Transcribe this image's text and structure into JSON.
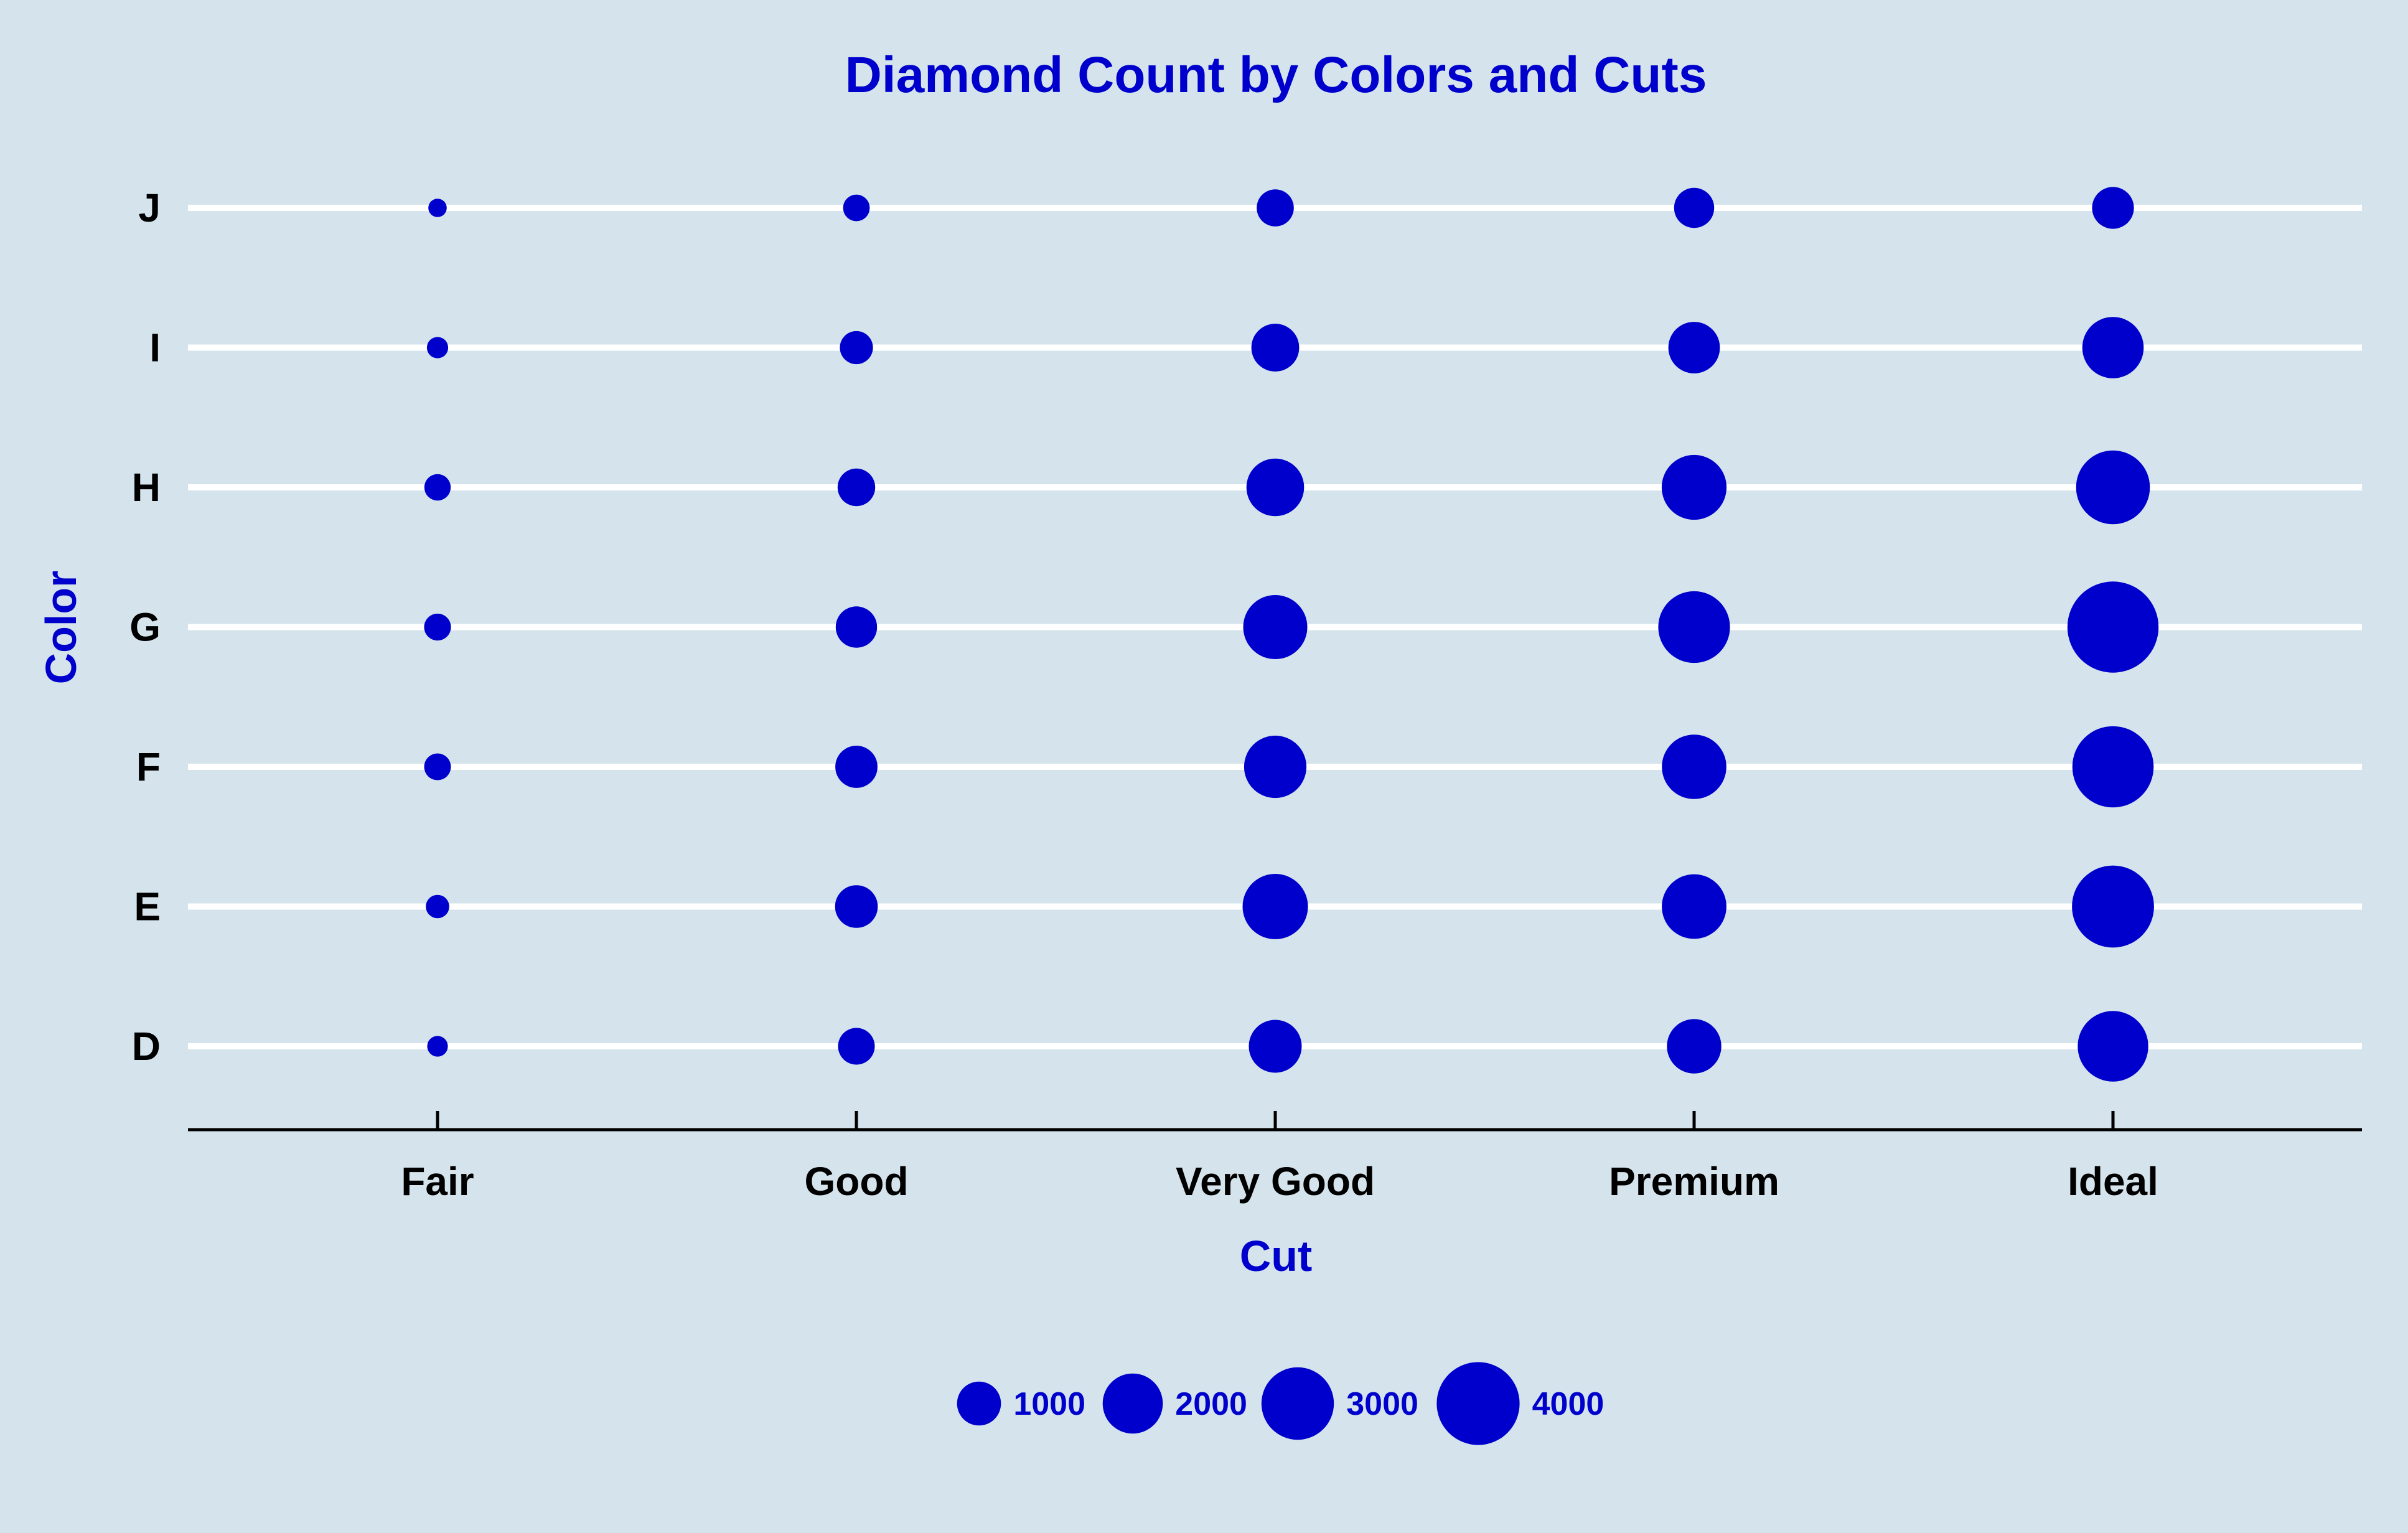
{
  "chart_data": {
    "type": "scatter",
    "subtype": "bubble",
    "title": "Diamond Count by Colors and Cuts",
    "xlabel": "Cut",
    "ylabel": "Color",
    "x_categories": [
      "Fair",
      "Good",
      "Very Good",
      "Premium",
      "Ideal"
    ],
    "y_categories": [
      "D",
      "E",
      "F",
      "G",
      "H",
      "I",
      "J"
    ],
    "points": [
      {
        "cut": "Fair",
        "color": "D",
        "count": 163
      },
      {
        "cut": "Fair",
        "color": "E",
        "count": 224
      },
      {
        "cut": "Fair",
        "color": "F",
        "count": 312
      },
      {
        "cut": "Fair",
        "color": "G",
        "count": 314
      },
      {
        "cut": "Fair",
        "color": "H",
        "count": 303
      },
      {
        "cut": "Fair",
        "color": "I",
        "count": 175
      },
      {
        "cut": "Fair",
        "color": "J",
        "count": 119
      },
      {
        "cut": "Good",
        "color": "D",
        "count": 662
      },
      {
        "cut": "Good",
        "color": "E",
        "count": 933
      },
      {
        "cut": "Good",
        "color": "F",
        "count": 909
      },
      {
        "cut": "Good",
        "color": "G",
        "count": 871
      },
      {
        "cut": "Good",
        "color": "H",
        "count": 702
      },
      {
        "cut": "Good",
        "color": "I",
        "count": 522
      },
      {
        "cut": "Good",
        "color": "J",
        "count": 307
      },
      {
        "cut": "Very Good",
        "color": "D",
        "count": 1513
      },
      {
        "cut": "Very Good",
        "color": "E",
        "count": 2400
      },
      {
        "cut": "Very Good",
        "color": "F",
        "count": 2164
      },
      {
        "cut": "Very Good",
        "color": "G",
        "count": 2299
      },
      {
        "cut": "Very Good",
        "color": "H",
        "count": 1824
      },
      {
        "cut": "Very Good",
        "color": "I",
        "count": 1204
      },
      {
        "cut": "Very Good",
        "color": "J",
        "count": 678
      },
      {
        "cut": "Premium",
        "color": "D",
        "count": 1603
      },
      {
        "cut": "Premium",
        "color": "E",
        "count": 2337
      },
      {
        "cut": "Premium",
        "color": "F",
        "count": 2331
      },
      {
        "cut": "Premium",
        "color": "G",
        "count": 2924
      },
      {
        "cut": "Premium",
        "color": "H",
        "count": 2360
      },
      {
        "cut": "Premium",
        "color": "I",
        "count": 1428
      },
      {
        "cut": "Premium",
        "color": "J",
        "count": 808
      },
      {
        "cut": "Ideal",
        "color": "D",
        "count": 2834
      },
      {
        "cut": "Ideal",
        "color": "E",
        "count": 3903
      },
      {
        "cut": "Ideal",
        "color": "F",
        "count": 3826
      },
      {
        "cut": "Ideal",
        "color": "G",
        "count": 4884
      },
      {
        "cut": "Ideal",
        "color": "H",
        "count": 3115
      },
      {
        "cut": "Ideal",
        "color": "I",
        "count": 2093
      },
      {
        "cut": "Ideal",
        "color": "J",
        "count": 896
      }
    ],
    "legend": {
      "title": "",
      "position": "bottom",
      "values": [
        1000,
        2000,
        3000,
        4000
      ],
      "labels": [
        "1000",
        "2000",
        "3000",
        "4000"
      ]
    },
    "grid": "horizontal",
    "colors": {
      "point": "#0000cc",
      "text_accent": "#0000cc",
      "tick_text": "#000000",
      "gridline": "#ffffff",
      "axis_line": "#000000",
      "background": "#d5e4ec"
    }
  }
}
